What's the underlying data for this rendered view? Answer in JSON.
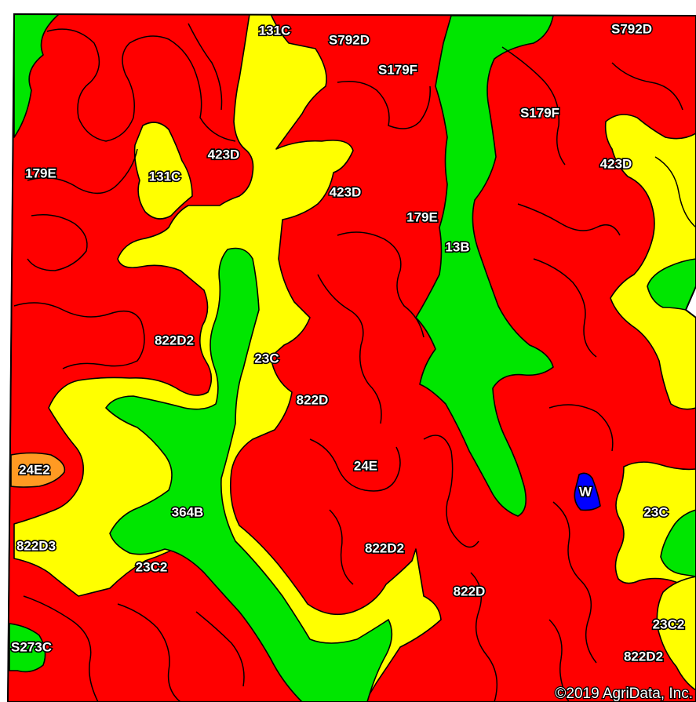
{
  "colors": {
    "red": "#ff0000",
    "yellow": "#ffff00",
    "green": "#00e600",
    "orange": "#ff9a22",
    "water": "#0000ff",
    "boundary": "#000000"
  },
  "soil_labels": [
    {
      "id": "131c-top",
      "text": "131C"
    },
    {
      "id": "s792d-top",
      "text": "S792D"
    },
    {
      "id": "s792d-right",
      "text": "S792D"
    },
    {
      "id": "s179f-top",
      "text": "S179F"
    },
    {
      "id": "s179f-right",
      "text": "S179F"
    },
    {
      "id": "423d-left",
      "text": "423D"
    },
    {
      "id": "423d-center",
      "text": "423D"
    },
    {
      "id": "423d-right",
      "text": "423D"
    },
    {
      "id": "179e-left",
      "text": "179E"
    },
    {
      "id": "179e-center",
      "text": "179E"
    },
    {
      "id": "131c-left",
      "text": "131C"
    },
    {
      "id": "13b",
      "text": "13B"
    },
    {
      "id": "822d2-left",
      "text": "822D2"
    },
    {
      "id": "23c-center",
      "text": "23C"
    },
    {
      "id": "822d-center",
      "text": "822D"
    },
    {
      "id": "24e2",
      "text": "24E2"
    },
    {
      "id": "24e",
      "text": "24E"
    },
    {
      "id": "w",
      "text": "W"
    },
    {
      "id": "364b",
      "text": "364B"
    },
    {
      "id": "23c-right",
      "text": "23C"
    },
    {
      "id": "822d3",
      "text": "822D3"
    },
    {
      "id": "822d2-center",
      "text": "822D2"
    },
    {
      "id": "23c2-left",
      "text": "23C2"
    },
    {
      "id": "822d-lower",
      "text": "822D"
    },
    {
      "id": "23c2-right",
      "text": "23C2"
    },
    {
      "id": "273c",
      "text": "S273C"
    },
    {
      "id": "822d2-right",
      "text": "822D2"
    }
  ],
  "copyright": "©2019 AgriData, Inc."
}
